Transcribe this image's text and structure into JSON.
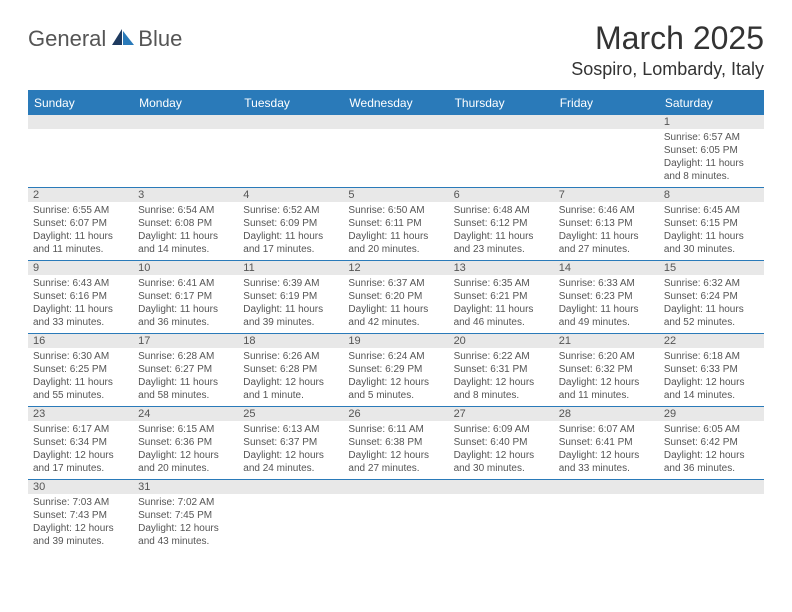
{
  "logo": {
    "text1": "General",
    "text2": "Blue"
  },
  "title": "March 2025",
  "location": "Sospiro, Lombardy, Italy",
  "dayHeaders": [
    "Sunday",
    "Monday",
    "Tuesday",
    "Wednesday",
    "Thursday",
    "Friday",
    "Saturday"
  ],
  "colors": {
    "header_bg": "#2a7ab9",
    "header_text": "#ffffff",
    "strip_bg": "#e8e8e8",
    "border": "#2a7ab9",
    "text": "#555555"
  },
  "weeks": [
    {
      "nums": [
        "",
        "",
        "",
        "",
        "",
        "",
        "1"
      ],
      "cells": [
        null,
        null,
        null,
        null,
        null,
        null,
        {
          "sunrise": "Sunrise: 6:57 AM",
          "sunset": "Sunset: 6:05 PM",
          "day1": "Daylight: 11 hours",
          "day2": "and 8 minutes."
        }
      ]
    },
    {
      "nums": [
        "2",
        "3",
        "4",
        "5",
        "6",
        "7",
        "8"
      ],
      "cells": [
        {
          "sunrise": "Sunrise: 6:55 AM",
          "sunset": "Sunset: 6:07 PM",
          "day1": "Daylight: 11 hours",
          "day2": "and 11 minutes."
        },
        {
          "sunrise": "Sunrise: 6:54 AM",
          "sunset": "Sunset: 6:08 PM",
          "day1": "Daylight: 11 hours",
          "day2": "and 14 minutes."
        },
        {
          "sunrise": "Sunrise: 6:52 AM",
          "sunset": "Sunset: 6:09 PM",
          "day1": "Daylight: 11 hours",
          "day2": "and 17 minutes."
        },
        {
          "sunrise": "Sunrise: 6:50 AM",
          "sunset": "Sunset: 6:11 PM",
          "day1": "Daylight: 11 hours",
          "day2": "and 20 minutes."
        },
        {
          "sunrise": "Sunrise: 6:48 AM",
          "sunset": "Sunset: 6:12 PM",
          "day1": "Daylight: 11 hours",
          "day2": "and 23 minutes."
        },
        {
          "sunrise": "Sunrise: 6:46 AM",
          "sunset": "Sunset: 6:13 PM",
          "day1": "Daylight: 11 hours",
          "day2": "and 27 minutes."
        },
        {
          "sunrise": "Sunrise: 6:45 AM",
          "sunset": "Sunset: 6:15 PM",
          "day1": "Daylight: 11 hours",
          "day2": "and 30 minutes."
        }
      ]
    },
    {
      "nums": [
        "9",
        "10",
        "11",
        "12",
        "13",
        "14",
        "15"
      ],
      "cells": [
        {
          "sunrise": "Sunrise: 6:43 AM",
          "sunset": "Sunset: 6:16 PM",
          "day1": "Daylight: 11 hours",
          "day2": "and 33 minutes."
        },
        {
          "sunrise": "Sunrise: 6:41 AM",
          "sunset": "Sunset: 6:17 PM",
          "day1": "Daylight: 11 hours",
          "day2": "and 36 minutes."
        },
        {
          "sunrise": "Sunrise: 6:39 AM",
          "sunset": "Sunset: 6:19 PM",
          "day1": "Daylight: 11 hours",
          "day2": "and 39 minutes."
        },
        {
          "sunrise": "Sunrise: 6:37 AM",
          "sunset": "Sunset: 6:20 PM",
          "day1": "Daylight: 11 hours",
          "day2": "and 42 minutes."
        },
        {
          "sunrise": "Sunrise: 6:35 AM",
          "sunset": "Sunset: 6:21 PM",
          "day1": "Daylight: 11 hours",
          "day2": "and 46 minutes."
        },
        {
          "sunrise": "Sunrise: 6:33 AM",
          "sunset": "Sunset: 6:23 PM",
          "day1": "Daylight: 11 hours",
          "day2": "and 49 minutes."
        },
        {
          "sunrise": "Sunrise: 6:32 AM",
          "sunset": "Sunset: 6:24 PM",
          "day1": "Daylight: 11 hours",
          "day2": "and 52 minutes."
        }
      ]
    },
    {
      "nums": [
        "16",
        "17",
        "18",
        "19",
        "20",
        "21",
        "22"
      ],
      "cells": [
        {
          "sunrise": "Sunrise: 6:30 AM",
          "sunset": "Sunset: 6:25 PM",
          "day1": "Daylight: 11 hours",
          "day2": "and 55 minutes."
        },
        {
          "sunrise": "Sunrise: 6:28 AM",
          "sunset": "Sunset: 6:27 PM",
          "day1": "Daylight: 11 hours",
          "day2": "and 58 minutes."
        },
        {
          "sunrise": "Sunrise: 6:26 AM",
          "sunset": "Sunset: 6:28 PM",
          "day1": "Daylight: 12 hours",
          "day2": "and 1 minute."
        },
        {
          "sunrise": "Sunrise: 6:24 AM",
          "sunset": "Sunset: 6:29 PM",
          "day1": "Daylight: 12 hours",
          "day2": "and 5 minutes."
        },
        {
          "sunrise": "Sunrise: 6:22 AM",
          "sunset": "Sunset: 6:31 PM",
          "day1": "Daylight: 12 hours",
          "day2": "and 8 minutes."
        },
        {
          "sunrise": "Sunrise: 6:20 AM",
          "sunset": "Sunset: 6:32 PM",
          "day1": "Daylight: 12 hours",
          "day2": "and 11 minutes."
        },
        {
          "sunrise": "Sunrise: 6:18 AM",
          "sunset": "Sunset: 6:33 PM",
          "day1": "Daylight: 12 hours",
          "day2": "and 14 minutes."
        }
      ]
    },
    {
      "nums": [
        "23",
        "24",
        "25",
        "26",
        "27",
        "28",
        "29"
      ],
      "cells": [
        {
          "sunrise": "Sunrise: 6:17 AM",
          "sunset": "Sunset: 6:34 PM",
          "day1": "Daylight: 12 hours",
          "day2": "and 17 minutes."
        },
        {
          "sunrise": "Sunrise: 6:15 AM",
          "sunset": "Sunset: 6:36 PM",
          "day1": "Daylight: 12 hours",
          "day2": "and 20 minutes."
        },
        {
          "sunrise": "Sunrise: 6:13 AM",
          "sunset": "Sunset: 6:37 PM",
          "day1": "Daylight: 12 hours",
          "day2": "and 24 minutes."
        },
        {
          "sunrise": "Sunrise: 6:11 AM",
          "sunset": "Sunset: 6:38 PM",
          "day1": "Daylight: 12 hours",
          "day2": "and 27 minutes."
        },
        {
          "sunrise": "Sunrise: 6:09 AM",
          "sunset": "Sunset: 6:40 PM",
          "day1": "Daylight: 12 hours",
          "day2": "and 30 minutes."
        },
        {
          "sunrise": "Sunrise: 6:07 AM",
          "sunset": "Sunset: 6:41 PM",
          "day1": "Daylight: 12 hours",
          "day2": "and 33 minutes."
        },
        {
          "sunrise": "Sunrise: 6:05 AM",
          "sunset": "Sunset: 6:42 PM",
          "day1": "Daylight: 12 hours",
          "day2": "and 36 minutes."
        }
      ]
    },
    {
      "nums": [
        "30",
        "31",
        "",
        "",
        "",
        "",
        ""
      ],
      "cells": [
        {
          "sunrise": "Sunrise: 7:03 AM",
          "sunset": "Sunset: 7:43 PM",
          "day1": "Daylight: 12 hours",
          "day2": "and 39 minutes."
        },
        {
          "sunrise": "Sunrise: 7:02 AM",
          "sunset": "Sunset: 7:45 PM",
          "day1": "Daylight: 12 hours",
          "day2": "and 43 minutes."
        },
        null,
        null,
        null,
        null,
        null
      ]
    }
  ]
}
